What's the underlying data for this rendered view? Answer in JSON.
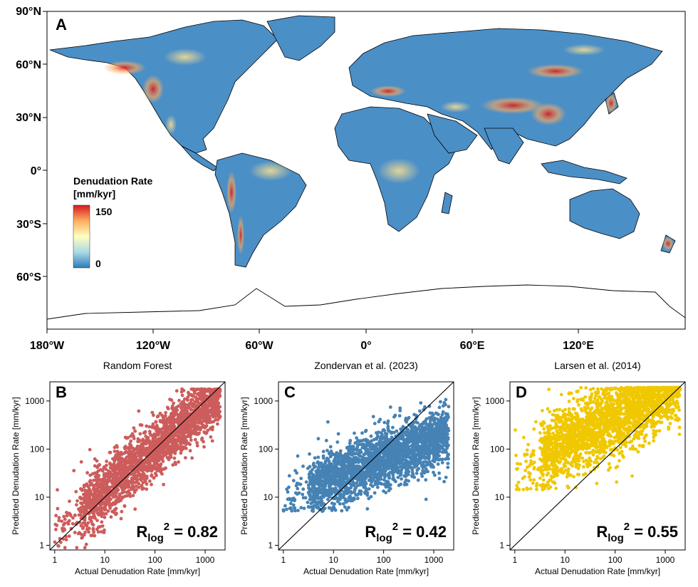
{
  "map": {
    "panel_letter": "A",
    "lat_labels": [
      "90°N",
      "60°N",
      "30°N",
      "0°",
      "30°S",
      "60°S"
    ],
    "lon_labels": [
      "180°W",
      "120°W",
      "60°W",
      "0°",
      "60°E",
      "120°E"
    ],
    "legend": {
      "title_line1": "Denudation Rate",
      "title_line2": "[mm/kyr]",
      "max_label": "150",
      "min_label": "0",
      "colors": [
        "#d7191c",
        "#fdae61",
        "#ffffbf",
        "#abd9e9",
        "#2c7bb6"
      ]
    },
    "land_color": "#4b8fc7",
    "colors": {
      "ocean": "#ffffff",
      "high": "#d7191c",
      "mid": "#fee090",
      "low": "#4b8fc7"
    }
  },
  "chart_data": [
    {
      "type": "scatter",
      "panel_letter": "B",
      "title": "Random Forest",
      "xlabel": "Actual Denudation Rate [mm/kyr]",
      "ylabel": "Predicted Denudation Rate [mm/kyr]",
      "xscale": "log",
      "yscale": "log",
      "xlim": [
        0.8,
        2500
      ],
      "ylim": [
        0.8,
        2500
      ],
      "xticks": [
        "1",
        "10",
        "100",
        "1000"
      ],
      "yticks": [
        "1",
        "10",
        "100",
        "1000"
      ],
      "r2_label": "R",
      "r2_sub": "log",
      "r2_sup": "2",
      "r2_value": " = 0.82",
      "color": "#cd5c5c",
      "one_to_one_line": true
    },
    {
      "type": "scatter",
      "panel_letter": "C",
      "title": "Zondervan et al. (2023)",
      "xlabel": "Actual Denudation Rate [mm/kyr]",
      "ylabel": "Predicted Denudation Rate [mm/kyr]",
      "xscale": "log",
      "yscale": "log",
      "xlim": [
        0.8,
        2500
      ],
      "ylim": [
        0.8,
        2500
      ],
      "xticks": [
        "1",
        "10",
        "100",
        "1000"
      ],
      "yticks": [
        "1",
        "10",
        "100",
        "1000"
      ],
      "r2_label": "R",
      "r2_sub": "log",
      "r2_sup": "2",
      "r2_value": " = 0.42",
      "color": "#4682b4",
      "one_to_one_line": true
    },
    {
      "type": "scatter",
      "panel_letter": "D",
      "title": "Larsen et al. (2014)",
      "xlabel": "Actual Denudation Rate [mm/kyr]",
      "ylabel": "Predicted Denudation Rate [mm/kyr]",
      "xscale": "log",
      "yscale": "log",
      "xlim": [
        0.8,
        2500
      ],
      "ylim": [
        0.8,
        2500
      ],
      "xticks": [
        "1",
        "10",
        "100",
        "1000"
      ],
      "yticks": [
        "1",
        "10",
        "100",
        "1000"
      ],
      "r2_label": "R",
      "r2_sub": "log",
      "r2_sup": "2",
      "r2_value": " = 0.55",
      "color": "#f0c800",
      "one_to_one_line": true
    }
  ]
}
